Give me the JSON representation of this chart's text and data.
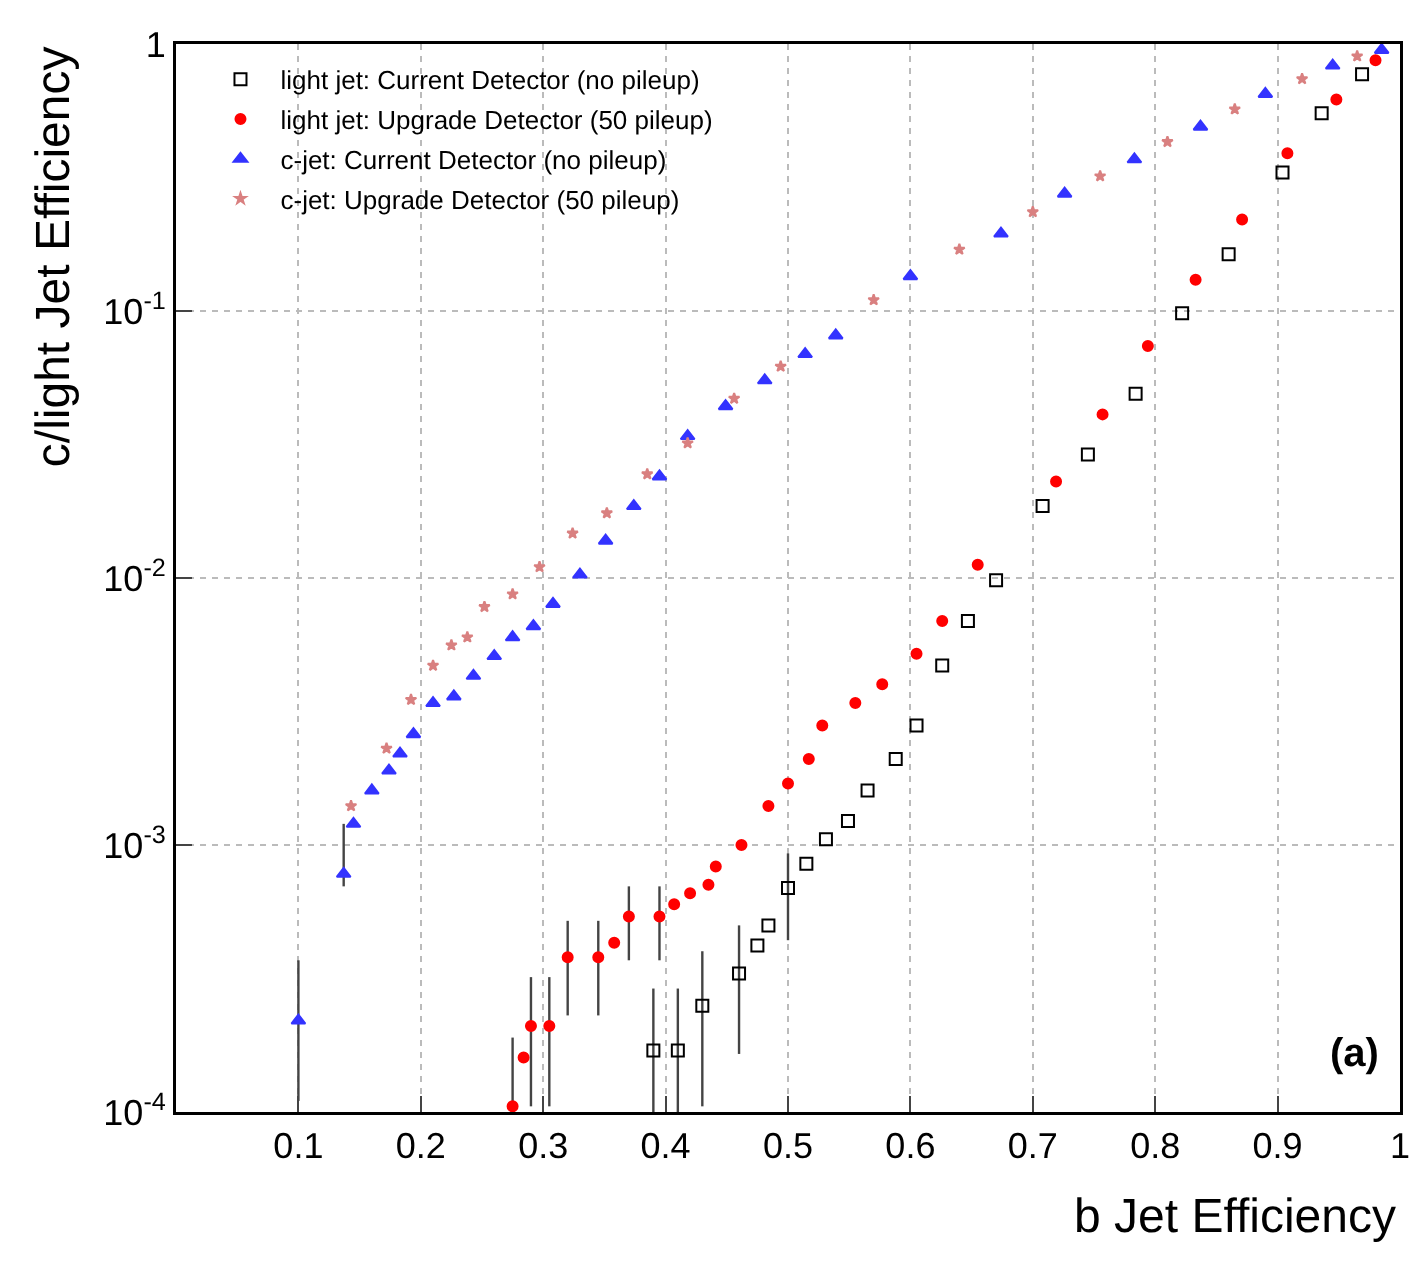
{
  "chart_data": {
    "type": "scatter",
    "xlabel": "b Jet Efficiency",
    "ylabel": "c/light Jet Efficiency",
    "annotations": [
      "(a)"
    ],
    "log": "y",
    "grid": true,
    "legend": "top left",
    "xlim": [
      0,
      1
    ],
    "xticks": [
      0.1,
      0.2,
      0.3,
      0.4,
      0.5,
      0.6,
      0.7,
      0.8,
      0.9,
      1
    ],
    "ylim": [
      0.0001,
      1
    ],
    "yticks": [
      {
        "value": 0.0001,
        "label": "10$^{-4}$"
      },
      {
        "value": 0.001,
        "label": "10$^{-3}$"
      },
      {
        "value": 0.01,
        "label": "10$^{-2}$"
      },
      {
        "value": 0.1,
        "label": "10$^{-1}$"
      },
      1
    ],
    "series": [
      {
        "name": "light jet: Current Detector (no pileup)",
        "color": "#000000",
        "marker": "square",
        "x": [
          0.39,
          0.41,
          0.43,
          0.46,
          0.475,
          0.484,
          0.5,
          0.515,
          0.531,
          0.549,
          0.565,
          0.588,
          0.605,
          0.626,
          0.647,
          0.67,
          0.708,
          0.745,
          0.784,
          0.822,
          0.86,
          0.904,
          0.936,
          0.969
        ],
        "values": [
          0.00017,
          0.00017,
          0.00025,
          0.00033,
          0.00042,
          0.0005,
          0.00069,
          0.00085,
          0.00105,
          0.00123,
          0.0016,
          0.0021,
          0.0028,
          0.0047,
          0.0069,
          0.0098,
          0.0186,
          0.029,
          0.049,
          0.098,
          0.163,
          0.33,
          0.55,
          0.77
        ],
        "errors": [
          [
            0.0001,
            0.00029
          ],
          [
            0.0001,
            0.00029
          ],
          [
            0.000105,
            0.0004
          ],
          [
            0.000165,
            0.0005
          ],
          null,
          null,
          [
            0.00044,
            0.00093
          ],
          null,
          null,
          null,
          null,
          null,
          null,
          null,
          null,
          null,
          null,
          null,
          null,
          null,
          null,
          null,
          null,
          null
        ]
      },
      {
        "name": "light jet: Upgrade Detector (50 pileup)",
        "color": "#ff0000",
        "marker": "circle",
        "x": [
          0.275,
          0.284,
          0.29,
          0.305,
          0.32,
          0.345,
          0.358,
          0.37,
          0.395,
          0.407,
          0.42,
          0.435,
          0.441,
          0.462,
          0.484,
          0.5,
          0.517,
          0.528,
          0.555,
          0.577,
          0.605,
          0.626,
          0.655,
          0.719,
          0.757,
          0.794,
          0.833,
          0.871,
          0.908,
          0.948,
          0.98
        ],
        "values": [
          0.000105,
          0.00016,
          0.00021,
          0.00021,
          0.00038,
          0.00038,
          0.00043,
          0.00054,
          0.00054,
          0.0006,
          0.00066,
          0.00071,
          0.00083,
          0.001,
          0.0014,
          0.0017,
          0.0021,
          0.0028,
          0.0034,
          0.004,
          0.0052,
          0.0069,
          0.0112,
          0.023,
          0.041,
          0.074,
          0.131,
          0.22,
          0.39,
          0.62,
          0.87
        ],
        "errors": [
          [
            0.0001,
            0.00019
          ],
          null,
          [
            0.000105,
            0.00032
          ],
          [
            0.000105,
            0.00032
          ],
          [
            0.00023,
            0.00052
          ],
          [
            0.00023,
            0.00052
          ],
          null,
          [
            0.00037,
            0.0007
          ],
          [
            0.00037,
            0.0007
          ],
          null,
          null,
          null,
          null,
          null,
          null,
          null,
          null,
          null,
          null,
          null,
          null,
          null,
          null,
          null,
          null,
          null,
          null,
          null,
          null,
          null,
          null
        ]
      },
      {
        "name": "c-jet: Current Detector (no pileup)",
        "color": "#3333ff",
        "marker": "triangle",
        "x": [
          0.1,
          0.137,
          0.145,
          0.16,
          0.174,
          0.183,
          0.194,
          0.21,
          0.227,
          0.243,
          0.26,
          0.275,
          0.292,
          0.308,
          0.33,
          0.351,
          0.374,
          0.395,
          0.418,
          0.449,
          0.481,
          0.514,
          0.539,
          0.6,
          0.674,
          0.726,
          0.783,
          0.837,
          0.89,
          0.945,
          0.985
        ],
        "values": [
          0.00022,
          0.00078,
          0.0012,
          0.0016,
          0.0019,
          0.0022,
          0.0026,
          0.0034,
          0.0036,
          0.0043,
          0.0051,
          0.006,
          0.0066,
          0.008,
          0.0103,
          0.0138,
          0.0186,
          0.024,
          0.034,
          0.044,
          0.055,
          0.069,
          0.081,
          0.135,
          0.195,
          0.275,
          0.37,
          0.49,
          0.65,
          0.83,
          0.95
        ],
        "errors": [
          [
            0.00011,
            0.00037
          ],
          [
            0.0007,
            0.0012
          ],
          null,
          null,
          null,
          null,
          null,
          null,
          null,
          null,
          null,
          null,
          null,
          null,
          null,
          null,
          null,
          null,
          null,
          null,
          null,
          null,
          null,
          null,
          null,
          null,
          null,
          null,
          null,
          null,
          null
        ]
      },
      {
        "name": "c-jet: Upgrade Detector (50 pileup)",
        "color": "#d98080",
        "marker": "star",
        "x": [
          0.143,
          0.172,
          0.192,
          0.21,
          0.225,
          0.238,
          0.252,
          0.275,
          0.297,
          0.324,
          0.352,
          0.385,
          0.418,
          0.456,
          0.494,
          0.57,
          0.64,
          0.7,
          0.755,
          0.81,
          0.865,
          0.92,
          0.965
        ],
        "values": [
          0.0014,
          0.0023,
          0.0035,
          0.0047,
          0.0056,
          0.006,
          0.0078,
          0.0087,
          0.011,
          0.0147,
          0.0175,
          0.0245,
          0.032,
          0.047,
          0.062,
          0.11,
          0.17,
          0.235,
          0.32,
          0.43,
          0.57,
          0.74,
          0.9
        ]
      }
    ]
  }
}
